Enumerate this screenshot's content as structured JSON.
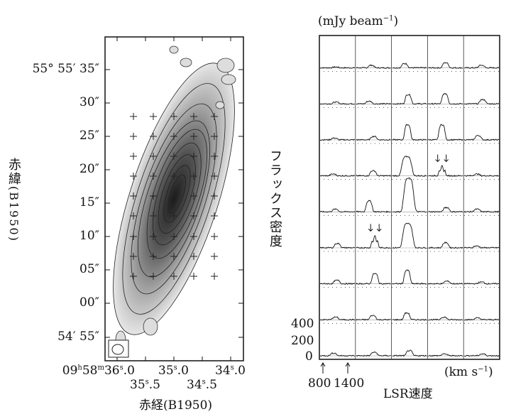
{
  "map": {
    "ylabel_jp": "赤緯",
    "ylabel_epoch": "(B1950)",
    "xlabel": "赤経(B1950)",
    "dec_ticks": [
      "55° 55′ 35″",
      "30″",
      "25″",
      "20″",
      "15″",
      "10″",
      "05″",
      "00″",
      "54′ 55″"
    ],
    "ra_ticks": [
      {
        "pre": "09",
        "h": "h",
        "min": "58",
        "m": "m",
        "int": "36",
        "s": "s",
        "frac": ".0"
      },
      {
        "int": "35",
        "s": "s",
        "frac": ".5"
      },
      {
        "int": "35",
        "s": "s",
        "frac": ".0"
      },
      {
        "int": "34",
        "s": "s",
        "frac": ".5"
      },
      {
        "int": "34",
        "s": "s",
        "frac": ".0"
      }
    ],
    "colors": {
      "ink": "#1a1a1a",
      "shade": "#555555"
    }
  },
  "chart_data": {
    "type": "line",
    "title": "",
    "ylabel": "フラックス密度",
    "yunit": "(mJy beam",
    "yunit_exp": "−1",
    "yunit_close": ")",
    "xlabel": "LSR速度",
    "xunit": "(km s",
    "xunit_exp": "−1",
    "xunit_close": ")",
    "y_ticks": [
      "400",
      "200",
      "0"
    ],
    "x_markers": [
      "800",
      "1400"
    ],
    "grid": {
      "rows": 9,
      "cols": 5
    },
    "peak_flux_mJy": [
      [
        10,
        30,
        50,
        60,
        30
      ],
      [
        20,
        30,
        110,
        120,
        50
      ],
      [
        20,
        40,
        180,
        180,
        50
      ],
      [
        20,
        60,
        230,
        120,
        20
      ],
      [
        30,
        130,
        400,
        50,
        30
      ],
      [
        50,
        150,
        290,
        60,
        20
      ],
      [
        40,
        120,
        160,
        30,
        20
      ],
      [
        30,
        50,
        80,
        30,
        20
      ],
      [
        30,
        40,
        60,
        20,
        20
      ]
    ],
    "double_peak_arrows": [
      [
        3,
        3
      ],
      [
        5,
        1
      ]
    ]
  }
}
